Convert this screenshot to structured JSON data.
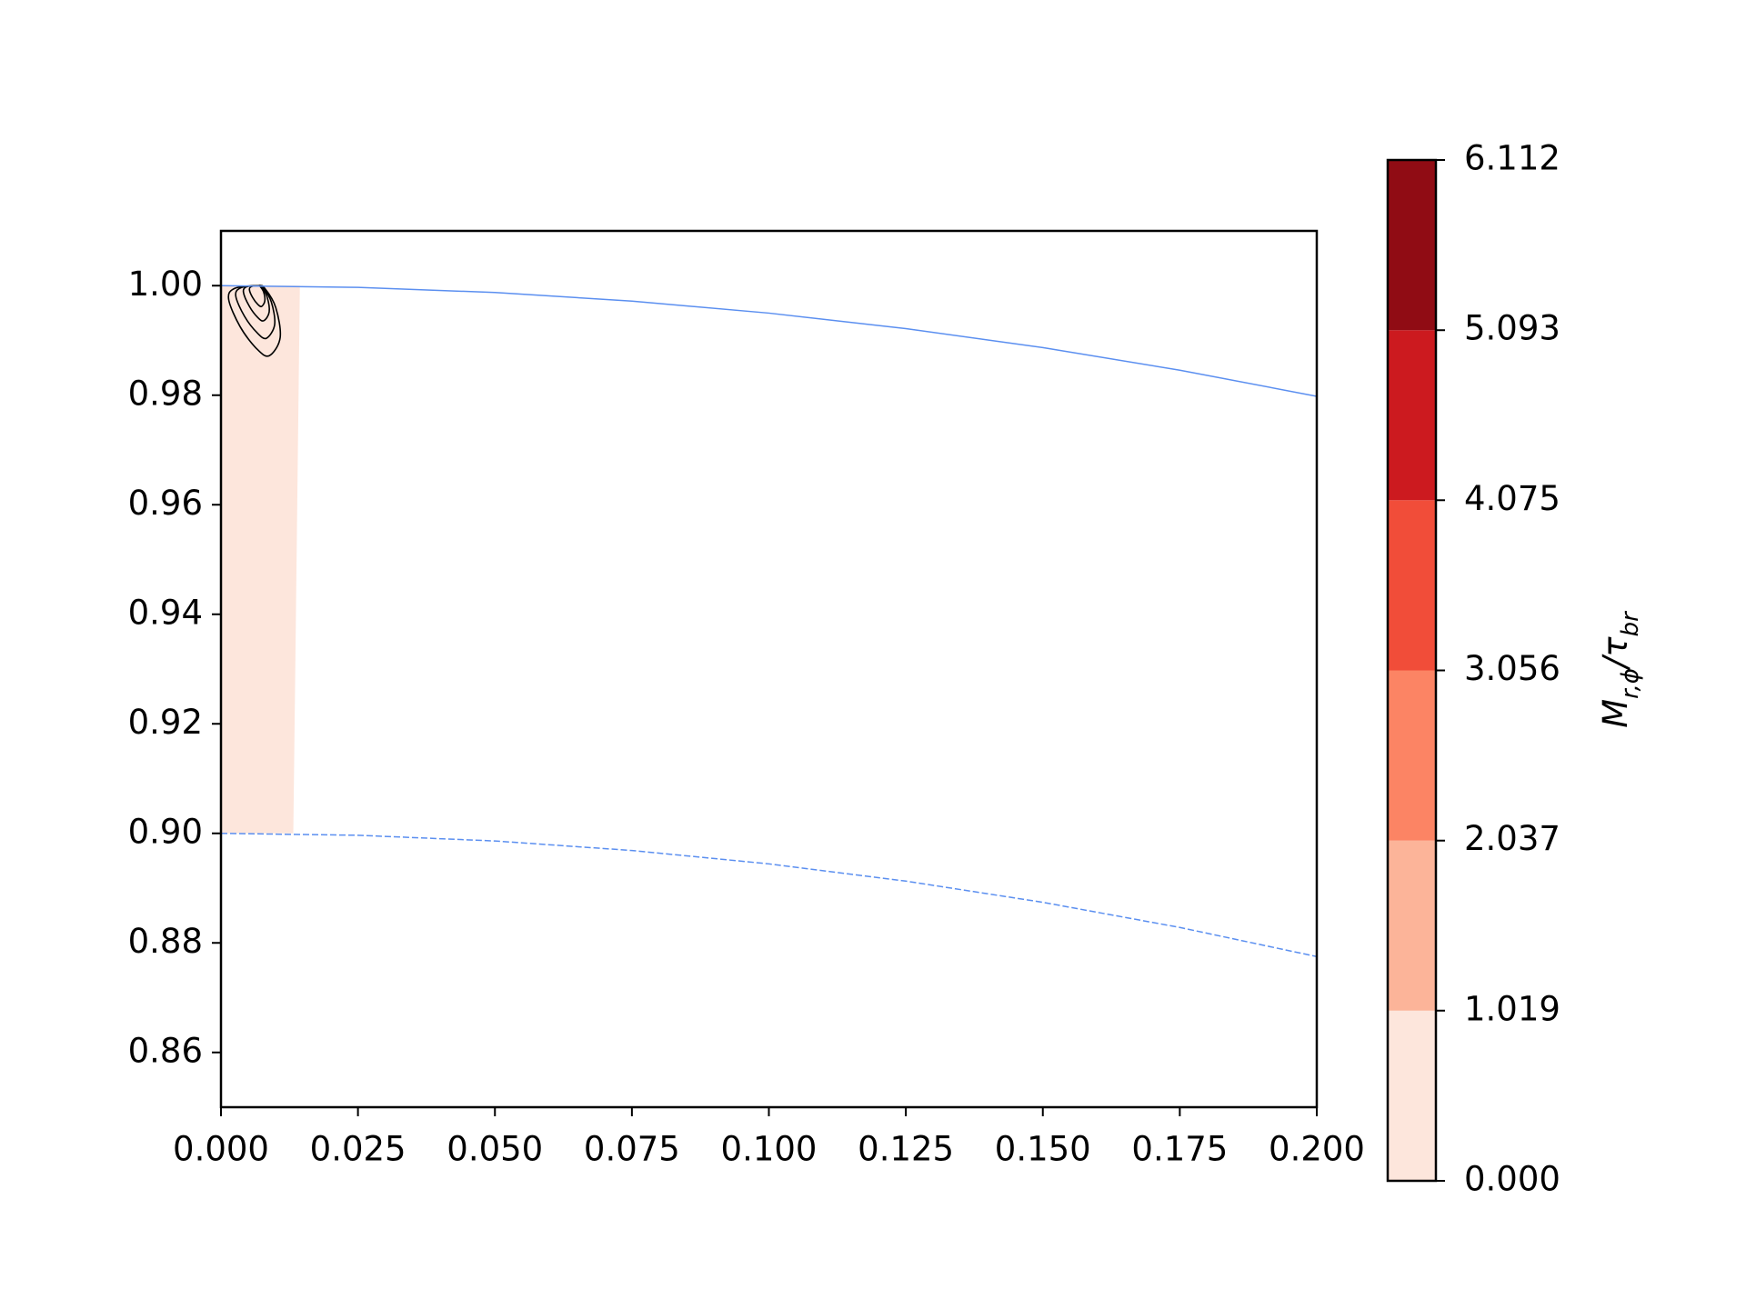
{
  "chart_data": {
    "type": "contour",
    "xlim": [
      0,
      0.2
    ],
    "ylim": [
      0.85,
      1.01
    ],
    "xticks": [
      {
        "value": 0,
        "label": "0.000"
      },
      0.025,
      {
        "value": 0.05,
        "label": "0.050"
      },
      0.075,
      {
        "value": 0.1,
        "label": "0.100"
      },
      0.125,
      {
        "value": 0.15,
        "label": "0.150"
      },
      0.175,
      {
        "value": 0.2,
        "label": "0.200"
      }
    ],
    "yticks": [
      0.86,
      0.88,
      {
        "value": 0.9,
        "label": "0.90"
      },
      0.92,
      0.94,
      0.96,
      0.98,
      {
        "value": 1.0,
        "label": "1.00"
      }
    ],
    "filled": {
      "color": "#fde6dc",
      "x": [
        0,
        0.0144,
        0.0132,
        0
      ],
      "y": [
        1.0,
        1.0,
        0.9,
        0.9
      ]
    },
    "contours": [
      {
        "color": "#000000",
        "x": [
          0.0068,
          0.0025,
          0.0014,
          0.0035,
          0.0065,
          0.0088,
          0.0108,
          0.01,
          0.008
        ],
        "y": [
          1.0,
          0.9995,
          0.9975,
          0.9925,
          0.9885,
          0.9872,
          0.9905,
          0.996,
          0.9995
        ]
      },
      {
        "color": "#000000",
        "x": [
          0.0068,
          0.0036,
          0.0027,
          0.0043,
          0.0066,
          0.0083,
          0.0098,
          0.0092,
          0.0077
        ],
        "y": [
          1.0,
          0.9996,
          0.9981,
          0.9944,
          0.9914,
          0.9904,
          0.9929,
          0.997,
          0.9996
        ]
      },
      {
        "color": "#000000",
        "x": [
          0.0068,
          0.0047,
          0.0041,
          0.0052,
          0.0067,
          0.0078,
          0.0088,
          0.0084,
          0.0074
        ],
        "y": [
          1.0,
          0.9998,
          0.9988,
          0.9962,
          0.9942,
          0.9936,
          0.9952,
          0.998,
          0.9998
        ]
      },
      {
        "color": "#000000",
        "x": [
          0.0068,
          0.0055,
          0.0052,
          0.0058,
          0.0067,
          0.0074,
          0.008,
          0.0078,
          0.0072
        ],
        "y": [
          1.0,
          0.9998,
          0.9992,
          0.9978,
          0.9966,
          0.9962,
          0.9972,
          0.9988,
          0.9998
        ]
      }
    ],
    "series": [
      {
        "color": "#5b8ff0",
        "linestyle": "solid",
        "x": [
          0,
          0.025,
          0.05,
          0.075,
          0.1,
          0.125,
          0.15,
          0.175,
          0.2
        ],
        "values": [
          1.0,
          0.99969,
          0.99875,
          0.99718,
          0.99499,
          0.99216,
          0.98869,
          0.98457,
          0.9798
        ]
      },
      {
        "color": "#5b8ff0",
        "linestyle": "dashed",
        "x": [
          0,
          0.025,
          0.05,
          0.075,
          0.1,
          0.125,
          0.15,
          0.175,
          0.2
        ],
        "values": [
          0.9,
          0.89965,
          0.89861,
          0.89687,
          0.89443,
          0.89128,
          0.88741,
          0.88282,
          0.8775
        ]
      }
    ],
    "colorbar": {
      "levels": [
        {
          "value": 0,
          "label": "0.000"
        },
        1.019,
        2.037,
        3.056,
        4.075,
        5.093,
        6.112
      ],
      "colors": [
        "#fde6dc",
        "#fcb499",
        "#fc8464",
        "#f14d39",
        "#cc1a1f",
        "#900c14"
      ],
      "label": [
        "M",
        "r,ϕ",
        "/τ",
        "br"
      ]
    }
  }
}
